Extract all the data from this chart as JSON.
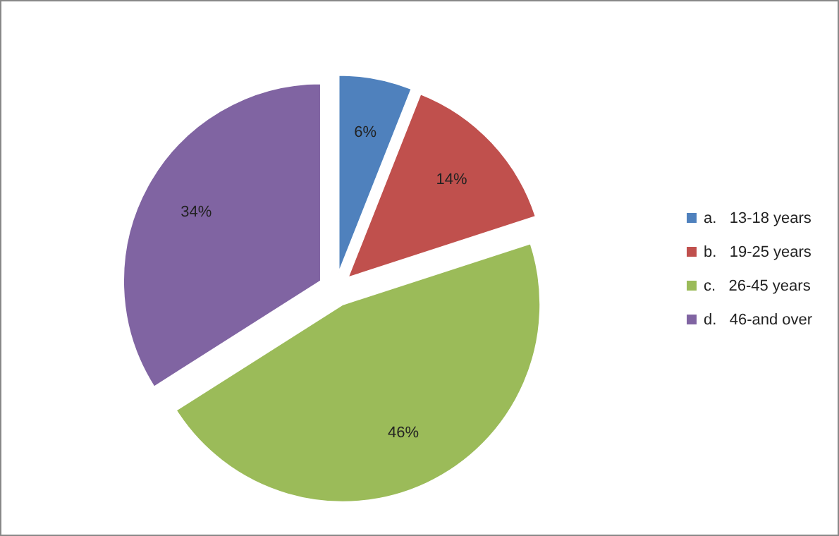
{
  "chart_data": {
    "type": "pie",
    "categories": [
      "a.   13-18 years",
      "b.   19-25 years",
      "c.   26-45 years",
      "d.   46-and over"
    ],
    "values": [
      6,
      14,
      46,
      34
    ],
    "colors": [
      "#4f81bd",
      "#c0504d",
      "#9bbb59",
      "#8064a2"
    ],
    "value_labels": [
      "6%",
      "14%",
      "46%",
      "34%"
    ],
    "legend": "right"
  }
}
